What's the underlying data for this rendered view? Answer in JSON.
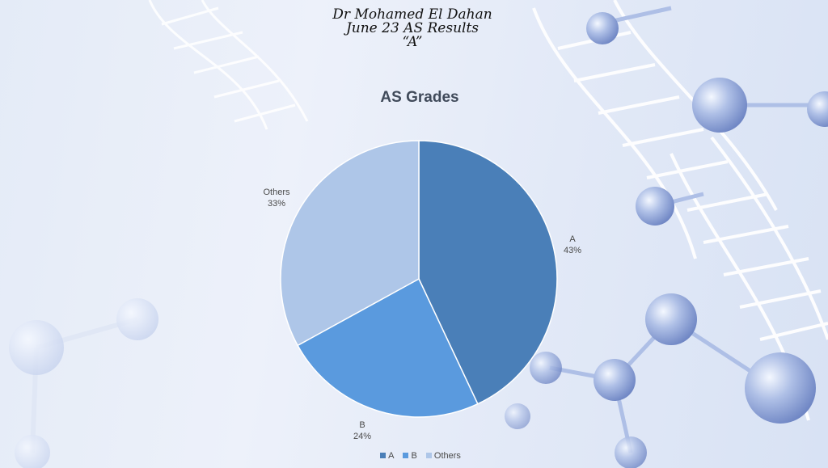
{
  "header": {
    "line1": "Dr Mohamed El Dahan",
    "line2": "June 23 AS Results",
    "line3": "“A”"
  },
  "chart_data": {
    "type": "pie",
    "title": "AS Grades",
    "categories": [
      "A",
      "B",
      "Others"
    ],
    "values": [
      43,
      24,
      33
    ],
    "percent_labels": [
      "43%",
      "24%",
      "33%"
    ],
    "colors": [
      "#4a7fb8",
      "#5a9ade",
      "#aec6e8"
    ],
    "legend_position": "bottom"
  }
}
